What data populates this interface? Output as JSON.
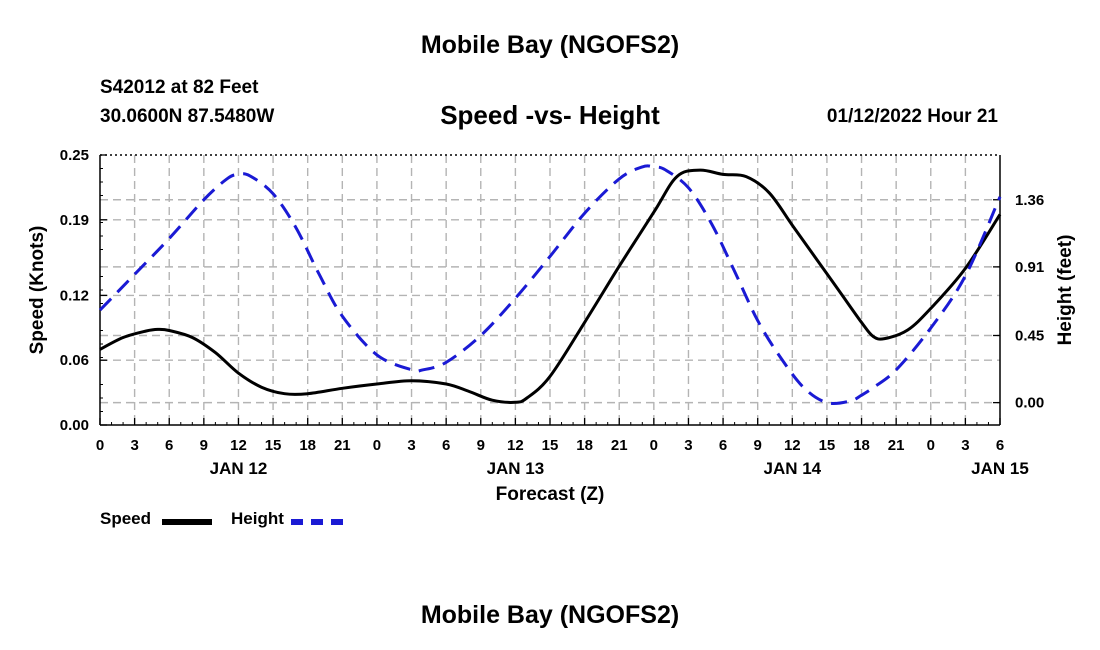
{
  "header": {
    "title": "Mobile Bay (NGOFS2)",
    "station": "S42012 at 82 Feet",
    "coordinates": "30.0600N  87.5480W",
    "subtitle": "Speed -vs- Height",
    "datetime": "01/12/2022 Hour 21"
  },
  "footer": {
    "title": "Mobile Bay (NGOFS2)"
  },
  "chart_data": {
    "type": "line",
    "title": "Speed -vs- Height",
    "xlabel": "Forecast (Z)",
    "ylabel": "Speed (Knots)",
    "y2label": "Height (feet)",
    "x_unit": "hours since 2022-01-12 00Z",
    "xlim": [
      0,
      78
    ],
    "ylim": [
      0,
      0.25
    ],
    "y2lim": [
      -0.15,
      1.66
    ],
    "x_ticks": [
      0,
      3,
      6,
      9,
      12,
      15,
      18,
      21,
      24,
      27,
      30,
      33,
      36,
      39,
      42,
      45,
      48,
      51,
      54,
      57,
      60,
      63,
      66,
      69,
      72,
      75,
      78
    ],
    "x_tick_labels": [
      "0",
      "3",
      "6",
      "9",
      "12",
      "15",
      "18",
      "21",
      "0",
      "3",
      "6",
      "9",
      "12",
      "15",
      "18",
      "21",
      "0",
      "3",
      "6",
      "9",
      "12",
      "15",
      "18",
      "21",
      "0",
      "3",
      "6"
    ],
    "date_labels": [
      {
        "x": 12,
        "label": "JAN 12"
      },
      {
        "x": 36,
        "label": "JAN 13"
      },
      {
        "x": 60,
        "label": "JAN 14"
      },
      {
        "x": 78,
        "label": "JAN 15"
      }
    ],
    "y_ticks": [
      0,
      0.06,
      0.12,
      0.19,
      0.25
    ],
    "y_tick_labels": [
      "0.00",
      "0.06",
      "0.12",
      "0.19",
      "0.25"
    ],
    "y2_ticks": [
      0,
      0.45,
      0.91,
      1.36
    ],
    "y2_tick_labels": [
      "0.00",
      "0.45",
      "0.91",
      "1.36"
    ],
    "grid": true,
    "legend": "bottom-left",
    "series": [
      {
        "name": "Speed",
        "axis": "left",
        "color": "#000000",
        "style": "solid",
        "x": [
          0,
          2,
          4,
          5,
          6,
          8,
          10,
          12,
          14,
          16,
          18,
          21,
          24,
          27,
          30,
          32,
          34,
          36,
          37,
          39,
          42,
          45,
          48,
          50,
          52,
          54,
          56,
          58,
          60,
          62,
          64,
          66,
          67,
          68,
          70,
          72,
          75,
          78
        ],
        "y": [
          0.07,
          0.081,
          0.087,
          0.0885,
          0.0875,
          0.081,
          0.067,
          0.048,
          0.035,
          0.029,
          0.029,
          0.034,
          0.038,
          0.041,
          0.038,
          0.031,
          0.023,
          0.021,
          0.025,
          0.045,
          0.095,
          0.147,
          0.197,
          0.23,
          0.236,
          0.232,
          0.23,
          0.215,
          0.185,
          0.155,
          0.125,
          0.095,
          0.082,
          0.08,
          0.088,
          0.108,
          0.145,
          0.195
        ]
      },
      {
        "name": "Height",
        "axis": "right",
        "color": "#1a1ad4",
        "style": "dashed",
        "x": [
          0,
          3,
          6,
          9,
          11,
          12,
          13,
          15,
          17,
          19,
          21,
          24,
          27,
          28,
          30,
          33,
          36,
          39,
          42,
          45,
          47,
          48,
          49,
          51,
          53,
          55,
          57,
          59,
          61,
          63,
          65,
          66,
          67,
          69,
          72,
          75,
          78
        ],
        "y": [
          0.62,
          0.86,
          1.1,
          1.36,
          1.5,
          1.53,
          1.52,
          1.4,
          1.17,
          0.86,
          0.58,
          0.32,
          0.22,
          0.22,
          0.27,
          0.45,
          0.7,
          0.98,
          1.27,
          1.5,
          1.58,
          1.58,
          1.56,
          1.44,
          1.2,
          0.88,
          0.55,
          0.3,
          0.1,
          0.0,
          0.01,
          0.05,
          0.1,
          0.22,
          0.5,
          0.85,
          1.38
        ]
      }
    ]
  }
}
